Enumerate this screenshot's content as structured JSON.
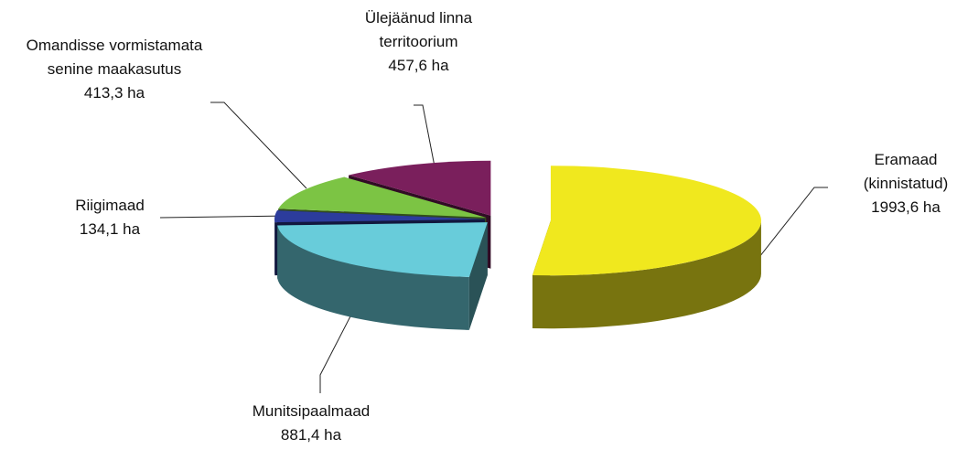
{
  "chart_data": {
    "type": "pie3d",
    "categories": [
      "Eramaad (kinnistatud)",
      "Munitsipaalmaad",
      "Riigimaad",
      "Omandisse vormistamata senine maakasutus",
      "Ülejäänud linna territoorium"
    ],
    "values": [
      1993.6,
      881.4,
      134.1,
      413.3,
      457.6
    ],
    "value_labels": [
      "1993,6 ha",
      "881,4 ha",
      "134,1 ha",
      "413,3 ha",
      "457,6 ha"
    ],
    "colors": [
      "#f0e81e",
      "#68ccda",
      "#2c3c9c",
      "#7cc444",
      "#7a1f5c"
    ]
  }
}
